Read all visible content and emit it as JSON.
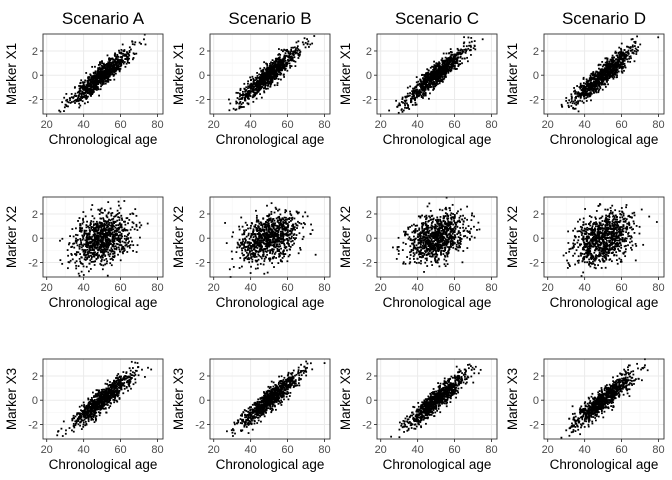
{
  "chart_data": {
    "type": "scatter",
    "layout": "4 columns (scenarios) x 3 rows (markers)",
    "columns": [
      "Scenario A",
      "Scenario B",
      "Scenario C",
      "Scenario D"
    ],
    "rows": [
      {
        "ylabel": "Marker X1",
        "relation": "strong positive linear",
        "approx_slope_per_year": 0.125,
        "residual_sd": 0.45
      },
      {
        "ylabel": "Marker X2",
        "relation": "weak positive",
        "approx_slope_per_year": 0.045,
        "residual_sd": 0.95
      },
      {
        "ylabel": "Marker X3",
        "relation": "strong positive linear",
        "approx_slope_per_year": 0.125,
        "residual_sd": 0.45
      }
    ],
    "xlabel": "Chronological age",
    "xlim": [
      18,
      83
    ],
    "ylim": [
      -3.2,
      3.4
    ],
    "xticks": [
      "20",
      "40",
      "60",
      "80"
    ],
    "yticks": [
      "2",
      "0",
      "-2"
    ],
    "x_distribution": {
      "mean": 50,
      "sd": 8
    },
    "points_per_panel": 900,
    "grid": true,
    "panel_border": true,
    "point_color": "#000000",
    "grid_major_color": "#ebebeb",
    "grid_minor_color": "#f5f5f5",
    "border_color": "#333333"
  }
}
